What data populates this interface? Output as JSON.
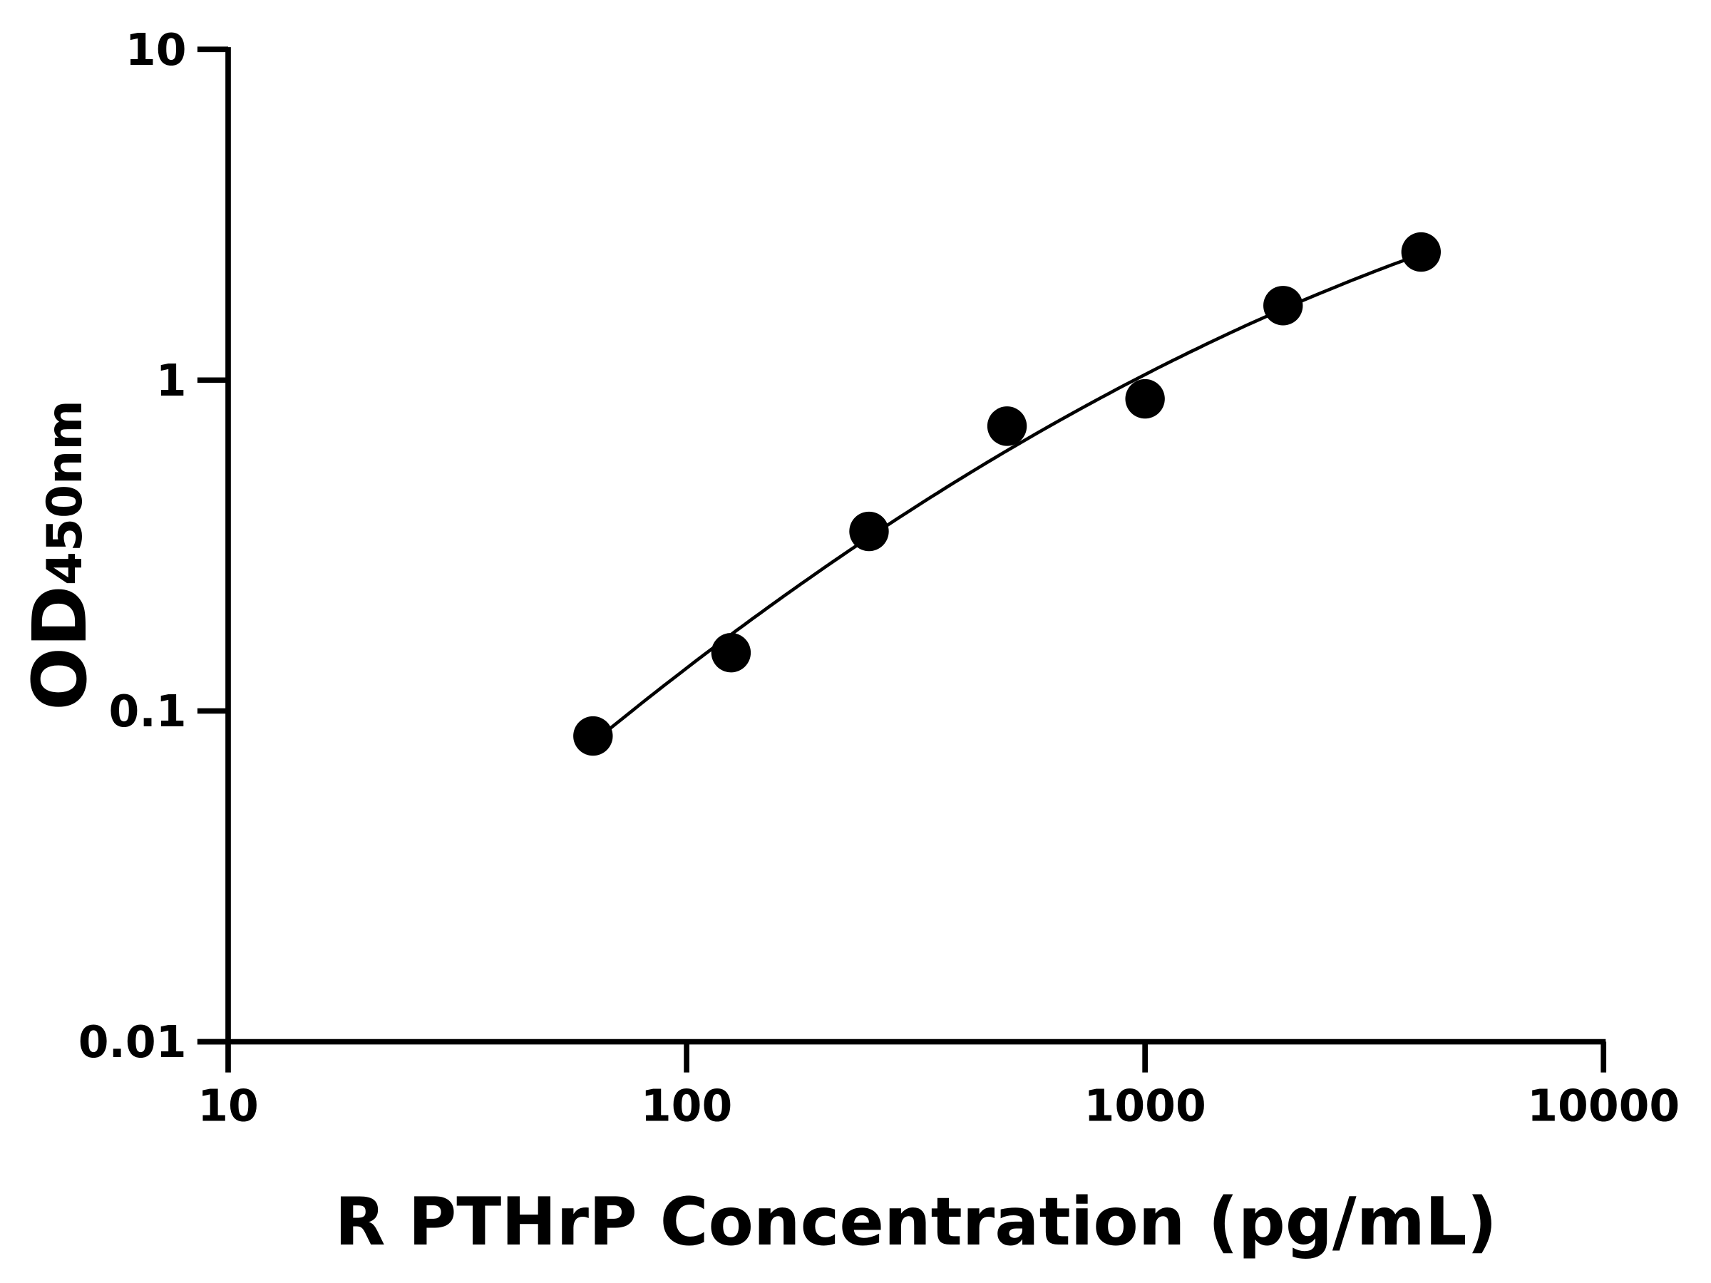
{
  "chart_data": {
    "type": "scatter",
    "title": "",
    "xlabel": "R PTHrP Concentration (pg/mL)",
    "ylabel_main": "OD",
    "ylabel_sub": "450nm",
    "x_scale": "log",
    "y_scale": "log",
    "xlim": [
      10,
      10000
    ],
    "ylim": [
      0.01,
      10
    ],
    "x_ticks": [
      10,
      100,
      1000,
      10000
    ],
    "x_tick_labels": [
      "10",
      "100",
      "1000",
      "10000"
    ],
    "y_ticks": [
      0.01,
      0.1,
      1,
      10
    ],
    "y_tick_labels": [
      "0.01",
      "0.1",
      "1",
      "10"
    ],
    "grid": false,
    "legend": "none",
    "fit_line": true,
    "colors": {
      "points": "#000000",
      "line": "#000000",
      "axes": "#000000"
    },
    "points": [
      {
        "x": 62.5,
        "y": 0.084
      },
      {
        "x": 125,
        "y": 0.15
      },
      {
        "x": 250,
        "y": 0.349
      },
      {
        "x": 500,
        "y": 0.726
      },
      {
        "x": 1000,
        "y": 0.878
      },
      {
        "x": 2000,
        "y": 1.68
      },
      {
        "x": 4000,
        "y": 2.44
      }
    ]
  }
}
